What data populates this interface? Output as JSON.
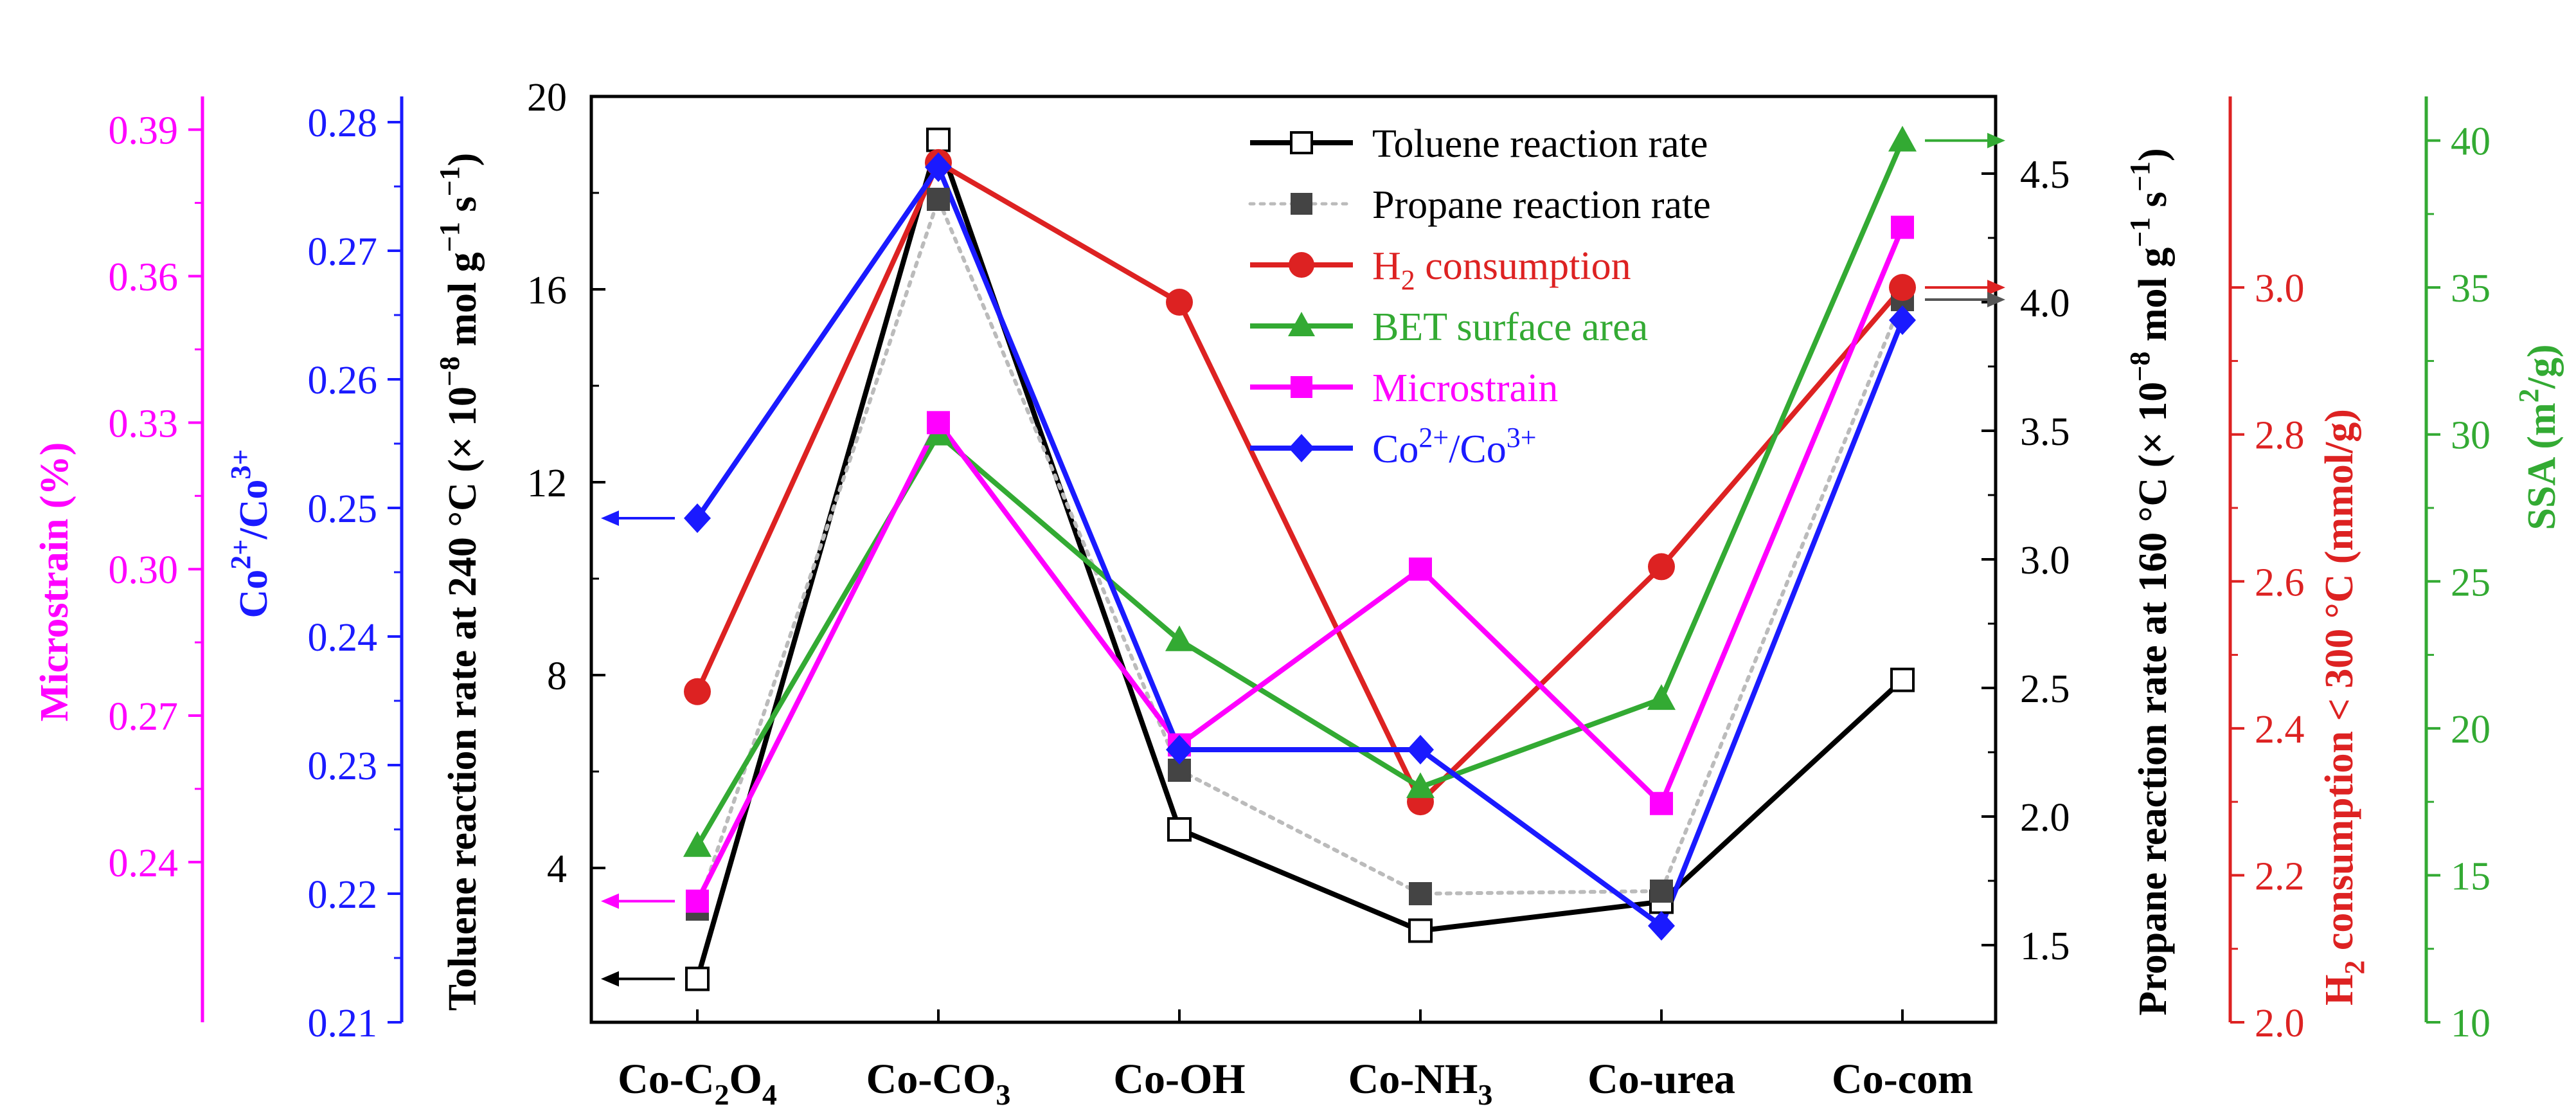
{
  "chart_data": {
    "type": "line",
    "categories": [
      {
        "base": "Co-C",
        "sub": "2",
        "tail": "O",
        "sub2": "4",
        "tail2": ""
      },
      {
        "base": "Co-CO",
        "sub": "3",
        "tail": "",
        "sub2": "",
        "tail2": ""
      },
      {
        "base": "Co-OH",
        "sub": "",
        "tail": "",
        "sub2": "",
        "tail2": ""
      },
      {
        "base": "Co-NH",
        "sub": "3",
        "tail": "",
        "sub2": "",
        "tail2": ""
      },
      {
        "base": "Co-urea",
        "sub": "",
        "tail": "",
        "sub2": "",
        "tail2": ""
      },
      {
        "base": "Co-com",
        "sub": "",
        "tail": "",
        "sub2": "",
        "tail2": ""
      }
    ],
    "axes": {
      "toluene": {
        "label_prefix": "Toluene reaction rate at 240 °C (× 10",
        "exp1": "−8",
        "label_mid": " mol g",
        "exp2": "−1",
        "label_mid2": " s",
        "exp3": "−1",
        "label_suffix": ")",
        "range": [
          0.8,
          20
        ],
        "ticks": [
          4,
          8,
          12,
          16,
          20
        ],
        "color": "#000000"
      },
      "co_ratio": {
        "label_prefix": "Co",
        "exp1": "2+",
        "label_mid": "/Co",
        "exp2": "3+",
        "range": [
          0.21,
          0.282
        ],
        "ticks": [
          "0.21",
          "0.22",
          "0.23",
          "0.24",
          "0.25",
          "0.26",
          "0.27",
          "0.28"
        ],
        "color": "#1a1aff"
      },
      "microstrain": {
        "label": "Microstrain (%)",
        "range": [
          0.2072,
          0.3968
        ],
        "ticks": [
          "0.24",
          "0.27",
          "0.30",
          "0.33",
          "0.36",
          "0.39"
        ],
        "color": "#ff00ff"
      },
      "propane": {
        "label_prefix": "Propane reaction rate at 160 °C (× 10",
        "exp1": "−8",
        "label_mid": " mol g",
        "exp2": "−1",
        "label_mid2": " s",
        "exp3": "−1",
        "label_suffix": ")",
        "range": [
          1.2,
          4.8
        ],
        "ticks": [
          "1.5",
          "2.0",
          "2.5",
          "3.0",
          "3.5",
          "4.0",
          "4.5"
        ],
        "color": "#000000"
      },
      "h2": {
        "label_prefix": "H",
        "sub": "2",
        "label_suffix": " consumption < 300 °C (mmol/g)",
        "range": [
          2.0,
          3.26
        ],
        "ticks": [
          "2.0",
          "2.2",
          "2.4",
          "2.6",
          "2.8",
          "3.0"
        ],
        "color": "#dd2222"
      },
      "ssa": {
        "label_prefix": "SSA (m",
        "exp": "2",
        "label_suffix": "/g)",
        "range": [
          10,
          41.5
        ],
        "ticks": [
          "10",
          "15",
          "20",
          "25",
          "30",
          "35",
          "40"
        ],
        "color": "#33aa33"
      }
    },
    "series": [
      {
        "name": "Toluene reaction rate",
        "axis": "toluene",
        "color": "#000000",
        "marker": "open-square",
        "dash": "",
        "values": [
          1.7,
          19.1,
          4.8,
          2.7,
          3.3,
          7.9
        ]
      },
      {
        "name": "Propane reaction rate",
        "axis": "propane",
        "color": "#444444",
        "marker": "filled-square",
        "dash": "6,10",
        "values": [
          1.64,
          4.4,
          2.18,
          1.7,
          1.71,
          4.01
        ]
      },
      {
        "name": "H2 consumption",
        "label_prefix": "H",
        "label_sub": "2",
        "label_suffix": " consumption",
        "axis": "h2",
        "color": "#dd2222",
        "marker": "circle",
        "dash": "",
        "values": [
          2.45,
          3.17,
          2.98,
          2.3,
          2.62,
          3.0
        ]
      },
      {
        "name": "BET surface area",
        "axis": "ssa",
        "color": "#33aa33",
        "marker": "triangle",
        "dash": "",
        "values": [
          16,
          30,
          23,
          18,
          21,
          40
        ]
      },
      {
        "name": "Microstrain",
        "axis": "microstrain",
        "color": "#ff00ff",
        "marker": "square",
        "dash": "",
        "values": [
          0.232,
          0.33,
          0.264,
          0.3,
          0.252,
          0.37
        ]
      },
      {
        "name": "Co2+/Co3+",
        "label_prefix": "Co",
        "label_exp1": "2+",
        "label_mid": "/Co",
        "label_exp2": "3+",
        "axis": "co_ratio",
        "color": "#1a1aff",
        "marker": "diamond",
        "dash": "",
        "values": [
          0.2492,
          0.2765,
          0.2312,
          0.2312,
          0.2175,
          0.2646
        ]
      }
    ],
    "legend_position": "top-center",
    "arrows": [
      {
        "series": "Toluene reaction rate",
        "category_index": 0,
        "direction": "left"
      },
      {
        "series": "Co2+/Co3+",
        "category_index": 0,
        "direction": "left"
      },
      {
        "series": "Microstrain",
        "category_index": 0,
        "direction": "left"
      },
      {
        "series": "BET surface area",
        "category_index": 5,
        "direction": "right"
      },
      {
        "series": "H2 consumption",
        "category_index": 5,
        "direction": "right"
      },
      {
        "series": "Propane reaction rate",
        "category_index": 5,
        "direction": "right"
      }
    ]
  }
}
